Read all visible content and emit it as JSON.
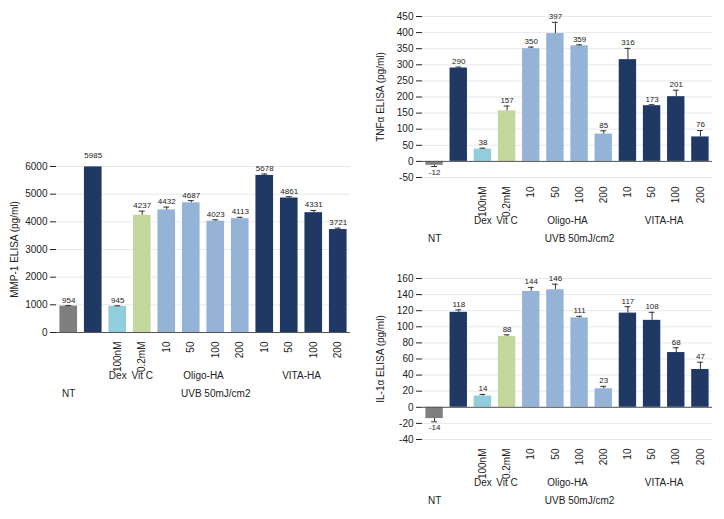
{
  "chart_data": [
    {
      "type": "bar",
      "y_label": "MMP-1 ELISA (pg/ml)",
      "categories": [
        null,
        null,
        "100nM",
        "0.2mM",
        "10",
        "50",
        "100",
        "200",
        "10",
        "50",
        "100",
        "200"
      ],
      "groups": [
        {
          "label": "Dex",
          "start": 2,
          "end": 2
        },
        {
          "label": "Vit C",
          "start": 3,
          "end": 3
        },
        {
          "label": "Oligo-HA",
          "start": 4,
          "end": 7
        },
        {
          "label": "VITA-HA",
          "start": 8,
          "end": 11
        }
      ],
      "outer_groups": [
        {
          "label": "NT",
          "start": 0,
          "end": 0
        },
        {
          "label": "UVB 50mJ/cm2",
          "start": 1,
          "end": 11
        }
      ],
      "values": [
        954,
        5985,
        945,
        4237,
        4432,
        4687,
        4023,
        4113,
        5678,
        4861,
        4331,
        3721
      ],
      "errors": [
        20,
        200,
        20,
        150,
        100,
        80,
        50,
        50,
        50,
        50,
        80,
        50
      ],
      "colors": [
        "#7f7f7f",
        "#1f3864",
        "#92cddc",
        "#c3d69b",
        "#95b3d7",
        "#95b3d7",
        "#95b3d7",
        "#95b3d7",
        "#1f3864",
        "#1f3864",
        "#1f3864",
        "#1f3864"
      ],
      "ylim": [
        0,
        6000
      ],
      "yticks": [
        0,
        1000,
        2000,
        3000,
        4000,
        5000,
        6000
      ],
      "grid": true,
      "data_labels": true
    },
    {
      "type": "bar",
      "y_label": "TNFα ELISA (pg/ml)",
      "categories": [
        null,
        null,
        "100nM",
        "0.2mM",
        "10",
        "50",
        "100",
        "200",
        "10",
        "50",
        "100",
        "200"
      ],
      "groups": [
        {
          "label": "Dex",
          "start": 2,
          "end": 2
        },
        {
          "label": "Vit C",
          "start": 3,
          "end": 3
        },
        {
          "label": "Oligo-HA",
          "start": 4,
          "end": 7
        },
        {
          "label": "VITA-HA",
          "start": 8,
          "end": 11
        }
      ],
      "outer_groups": [
        {
          "label": "NT",
          "start": 0,
          "end": 0
        },
        {
          "label": "UVB 50mJ/cm2",
          "start": 1,
          "end": 11
        }
      ],
      "values": [
        -12,
        290,
        38,
        157,
        350,
        397,
        359,
        85,
        316,
        173,
        201,
        76
      ],
      "errors": [
        4,
        3,
        3,
        15,
        5,
        35,
        3,
        10,
        35,
        3,
        20,
        20
      ],
      "colors": [
        "#7f7f7f",
        "#1f3864",
        "#92cddc",
        "#c3d69b",
        "#95b3d7",
        "#95b3d7",
        "#95b3d7",
        "#95b3d7",
        "#1f3864",
        "#1f3864",
        "#1f3864",
        "#1f3864"
      ],
      "ylim": [
        -50,
        450
      ],
      "yticks": [
        -50,
        0,
        50,
        100,
        150,
        200,
        250,
        300,
        350,
        400,
        450
      ],
      "grid": true,
      "data_labels": true
    },
    {
      "type": "bar",
      "y_label": "IL-1α ELISA (pg/ml)",
      "categories": [
        null,
        null,
        "100nM",
        "0.2mM",
        "10",
        "50",
        "100",
        "200",
        "10",
        "50",
        "100",
        "200"
      ],
      "groups": [
        {
          "label": "Dex",
          "start": 2,
          "end": 2
        },
        {
          "label": "Vit C",
          "start": 3,
          "end": 3
        },
        {
          "label": "Oligo-HA",
          "start": 4,
          "end": 7
        },
        {
          "label": "VITA-HA",
          "start": 8,
          "end": 11
        }
      ],
      "outer_groups": [
        {
          "label": "NT",
          "start": 0,
          "end": 0
        },
        {
          "label": "UVB 50mJ/cm2",
          "start": 1,
          "end": 11
        }
      ],
      "values": [
        -14,
        118,
        14,
        88,
        144,
        146,
        111,
        23,
        117,
        108,
        68,
        47
      ],
      "errors": [
        4,
        3,
        2,
        2,
        5,
        7,
        2,
        3,
        8,
        10,
        6,
        9
      ],
      "colors": [
        "#7f7f7f",
        "#1f3864",
        "#92cddc",
        "#c3d69b",
        "#95b3d7",
        "#95b3d7",
        "#95b3d7",
        "#95b3d7",
        "#1f3864",
        "#1f3864",
        "#1f3864",
        "#1f3864"
      ],
      "ylim": [
        -40,
        160
      ],
      "yticks": [
        -40,
        -20,
        0,
        20,
        40,
        60,
        80,
        100,
        120,
        140,
        160
      ],
      "grid": true,
      "data_labels": true
    }
  ]
}
